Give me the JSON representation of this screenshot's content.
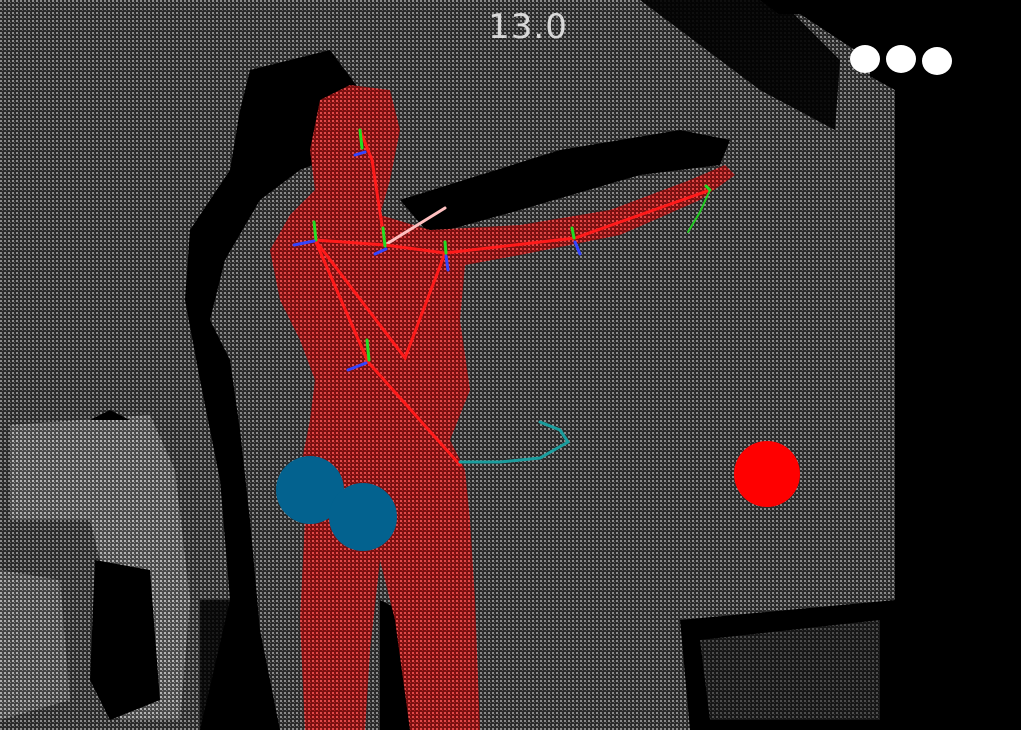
{
  "hud": {
    "timer": "13.0",
    "lives_remaining": 3
  },
  "colors": {
    "background": "#000000",
    "point_cloud": "#7a7a7a",
    "player_body": "#c02a2a",
    "skeleton": "#ff0000",
    "target_ball": "#ff0000",
    "hazard_ball": "#03628f",
    "life_dot": "#ffffff",
    "hand_trail": "#1a9e9e"
  },
  "icons": {
    "life": "circle-dot",
    "target": "red-ball",
    "hazard": "blue-ball"
  }
}
